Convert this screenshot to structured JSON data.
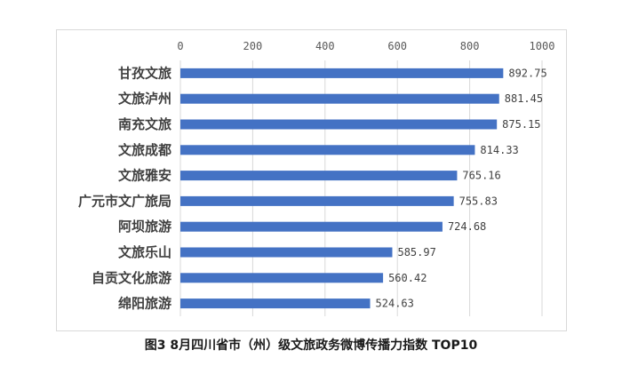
{
  "caption": "图3  8月四川省市（州）级文旅政务微博传播力指数 TOP10",
  "chart_data": {
    "type": "bar",
    "orientation": "horizontal",
    "categories": [
      "甘孜文旅",
      "文旅泸州",
      "南充文旅",
      "文旅成都",
      "文旅雅安",
      "广元市文广旅局",
      "阿坝旅游",
      "文旅乐山",
      "自贡文化旅游",
      "绵阳旅游"
    ],
    "values": [
      892.75,
      881.45,
      875.15,
      814.33,
      765.16,
      755.83,
      724.68,
      585.97,
      560.42,
      524.63
    ],
    "value_labels": [
      "892.75",
      "881.45",
      "875.15",
      "814.33",
      "765.16",
      "755.83",
      "724.68",
      "585.97",
      "560.42",
      "524.63"
    ],
    "xlim": [
      0,
      1000
    ],
    "x_ticks": [
      "0",
      "200",
      "400",
      "600",
      "800",
      "1000"
    ],
    "x_axis_position": "top",
    "grid": true,
    "bar_color": "#4472c4"
  }
}
